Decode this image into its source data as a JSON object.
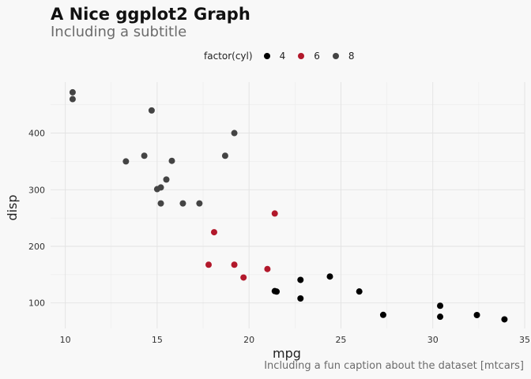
{
  "title": "A Nice ggplot2 Graph",
  "subtitle": "Including a subtitle",
  "caption": "Including a fun caption about the dataset [mtcars]",
  "legend": {
    "title": "factor(cyl)",
    "items": [
      {
        "label": "4",
        "color": "#000000"
      },
      {
        "label": "6",
        "color": "#b2182b"
      },
      {
        "label": "8",
        "color": "#444444"
      }
    ]
  },
  "chart_data": {
    "type": "scatter",
    "title": "A Nice ggplot2 Graph",
    "subtitle": "Including a subtitle",
    "xlabel": "mpg",
    "ylabel": "disp",
    "xlim": [
      9.2,
      35
    ],
    "ylim": [
      55,
      490
    ],
    "xticks": [
      10,
      15,
      20,
      25,
      30,
      35
    ],
    "yticks": [
      100,
      200,
      300,
      400
    ],
    "grid": true,
    "legend_position": "top",
    "series": [
      {
        "name": "4",
        "color": "#000000",
        "points": [
          {
            "x": 22.8,
            "y": 108
          },
          {
            "x": 24.4,
            "y": 146.7
          },
          {
            "x": 22.8,
            "y": 140.8
          },
          {
            "x": 32.4,
            "y": 78.7
          },
          {
            "x": 30.4,
            "y": 75.7
          },
          {
            "x": 33.9,
            "y": 71.1
          },
          {
            "x": 21.5,
            "y": 120.1
          },
          {
            "x": 27.3,
            "y": 79
          },
          {
            "x": 26.0,
            "y": 120.3
          },
          {
            "x": 30.4,
            "y": 95.1
          },
          {
            "x": 21.4,
            "y": 121
          }
        ]
      },
      {
        "name": "6",
        "color": "#b2182b",
        "points": [
          {
            "x": 21.0,
            "y": 160
          },
          {
            "x": 21.4,
            "y": 258
          },
          {
            "x": 18.1,
            "y": 225
          },
          {
            "x": 19.2,
            "y": 167.6
          },
          {
            "x": 17.8,
            "y": 167.6
          },
          {
            "x": 19.7,
            "y": 145
          }
        ]
      },
      {
        "name": "8",
        "color": "#444444",
        "points": [
          {
            "x": 18.7,
            "y": 360
          },
          {
            "x": 14.3,
            "y": 360
          },
          {
            "x": 16.4,
            "y": 275.8
          },
          {
            "x": 17.3,
            "y": 275.8
          },
          {
            "x": 15.2,
            "y": 275.8
          },
          {
            "x": 10.4,
            "y": 472
          },
          {
            "x": 10.4,
            "y": 460
          },
          {
            "x": 14.7,
            "y": 440
          },
          {
            "x": 15.5,
            "y": 318
          },
          {
            "x": 15.2,
            "y": 304
          },
          {
            "x": 13.3,
            "y": 350
          },
          {
            "x": 19.2,
            "y": 400
          },
          {
            "x": 15.8,
            "y": 351
          },
          {
            "x": 15.0,
            "y": 301
          }
        ]
      }
    ]
  }
}
